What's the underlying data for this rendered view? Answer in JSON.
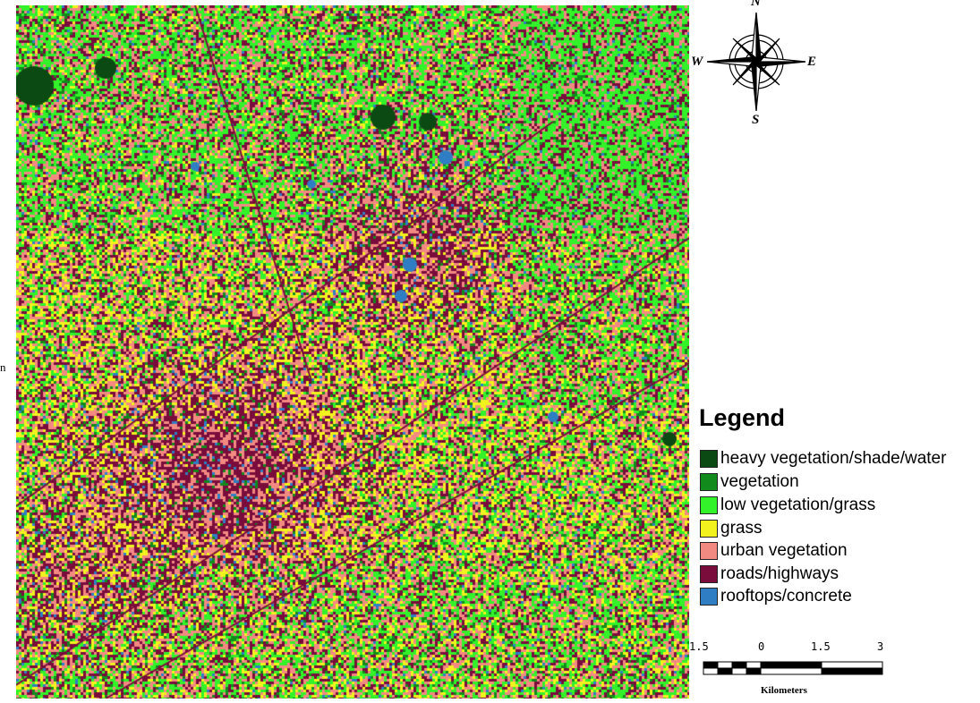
{
  "map": {
    "classes": [
      {
        "label": "heavy vegetation/shade/water",
        "color": "#0b4a12"
      },
      {
        "label": "vegetation",
        "color": "#138a1c"
      },
      {
        "label": "low vegetation/grass",
        "color": "#33f22a"
      },
      {
        "label": "grass",
        "color": "#f2f21e"
      },
      {
        "label": "urban vegetation",
        "color": "#f28a82"
      },
      {
        "label": "roads/highways",
        "color": "#7a0c3c"
      },
      {
        "label": "rooftops/concrete",
        "color": "#2f7ec4"
      }
    ]
  },
  "legend": {
    "title": "Legend"
  },
  "compass": {
    "north": "N",
    "south": "S",
    "east": "E",
    "west": "W"
  },
  "scalebar": {
    "ticks": [
      "1.5",
      "0",
      "1.5",
      "3"
    ],
    "unit": "Kilometers"
  },
  "edge_glyph": "n"
}
